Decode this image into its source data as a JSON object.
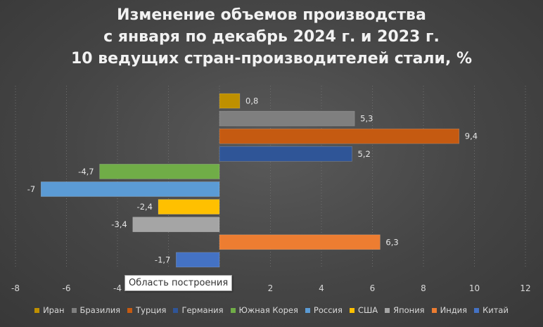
{
  "chart_data": {
    "type": "bar",
    "orientation": "horizontal",
    "title_lines": [
      "Изменение объемов производства",
      "с января по декабрь 2024 г. и 2023 г.",
      "10 ведущих стран-производителей стали, %"
    ],
    "categories": [
      "Иран",
      "Бразилия",
      "Турция",
      "Германия",
      "Южная Корея",
      "Россия",
      "США",
      "Япония",
      "Индия",
      "Китай"
    ],
    "values": [
      0.8,
      5.3,
      9.4,
      5.2,
      -4.7,
      -7,
      -2.4,
      -3.4,
      6.3,
      -1.7
    ],
    "value_labels": [
      "0,8",
      "5,3",
      "9,4",
      "5,2",
      "-4,7",
      "-7",
      "-2,4",
      "-3,4",
      "6,3",
      "-1,7"
    ],
    "colors": [
      "#bf9000",
      "#7f7f7f",
      "#c55a11",
      "#2f5597",
      "#70ad47",
      "#5b9bd5",
      "#ffc000",
      "#a5a5a5",
      "#ed7d31",
      "#4472c4"
    ],
    "xlim": [
      -8,
      12
    ],
    "xticks": [
      -8,
      -6,
      -4,
      -2,
      0,
      2,
      4,
      6,
      8,
      10,
      12
    ],
    "xtick_labels": [
      "-8",
      "-6",
      "-4",
      "",
      "",
      "2",
      "4",
      "6",
      "8",
      "10",
      "12"
    ],
    "grid": true,
    "legend_position": "bottom"
  },
  "tooltip_text": "Область построения"
}
